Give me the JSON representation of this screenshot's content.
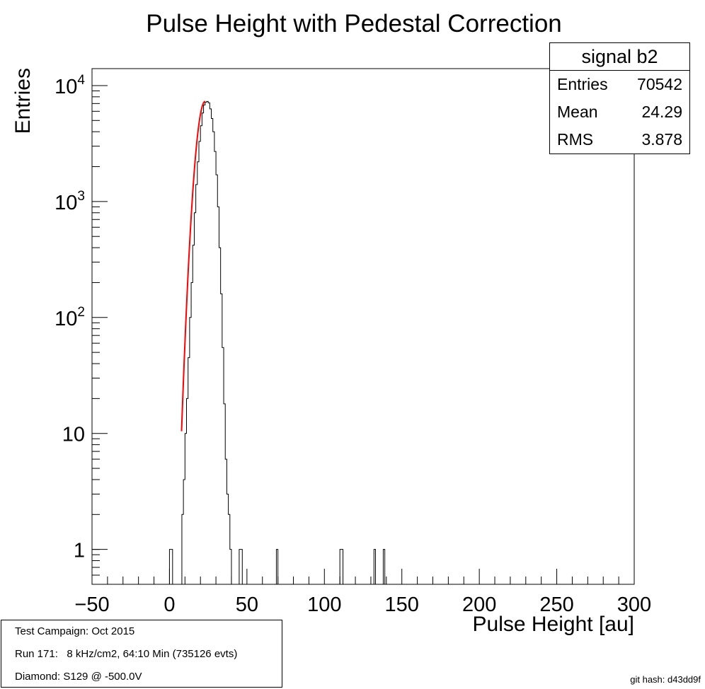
{
  "chart_data": {
    "type": "histogram",
    "title": "Pulse Height with Pedestal Correction",
    "xlabel": "Pulse Height [au]",
    "ylabel": "Entries",
    "xlim": [
      -50,
      300
    ],
    "ylim": [
      0.5,
      14000
    ],
    "log_y": true,
    "bin_width": 1,
    "x_ticks": [
      "−50",
      "0",
      "50",
      "100",
      "150",
      "200",
      "250",
      "300"
    ],
    "y_ticks": [
      {
        "label": "1",
        "value": 1
      },
      {
        "label": "10",
        "value": 10
      },
      {
        "label": "10",
        "sup": "2",
        "value": 100
      },
      {
        "label": "10",
        "sup": "3",
        "value": 1000
      },
      {
        "label": "10",
        "sup": "4",
        "value": 10000
      }
    ],
    "bins_x": [
      0,
      1,
      8,
      9,
      10,
      11,
      12,
      13,
      14,
      15,
      16,
      17,
      18,
      19,
      20,
      21,
      22,
      23,
      24,
      25,
      26,
      27,
      28,
      29,
      30,
      31,
      32,
      33,
      34,
      35,
      36,
      37,
      38,
      39,
      45,
      46,
      69,
      110,
      111,
      132,
      138
    ],
    "bins_y": [
      1,
      1,
      2,
      4,
      10,
      20,
      45,
      100,
      200,
      420,
      800,
      1400,
      2200,
      3300,
      4500,
      5800,
      6800,
      7200,
      7300,
      7100,
      6300,
      5200,
      4000,
      2700,
      1700,
      900,
      400,
      160,
      55,
      18,
      6,
      3,
      2,
      1,
      1,
      1,
      1,
      1,
      1,
      1,
      1
    ],
    "fit": {
      "name": "gaussian",
      "color": "#ff0000",
      "amplitude": 7300,
      "mean": 23,
      "sigma": 4.2,
      "x_range": [
        7.8,
        23
      ]
    },
    "stats": {
      "name": "signal b2",
      "rows": [
        {
          "label": "Entries",
          "value": "70542"
        },
        {
          "label": "Mean",
          "value": "24.29"
        },
        {
          "label": "RMS",
          "value": "3.878"
        }
      ]
    }
  },
  "info": {
    "campaign": "Test Campaign: Oct 2015",
    "run": "Run 171:   8 kHz/cm2, 64:10 Min (735126 evts)",
    "diamond": "Diamond: S129 @ -500.0V"
  },
  "git_hash": "git hash: d43dd9f"
}
